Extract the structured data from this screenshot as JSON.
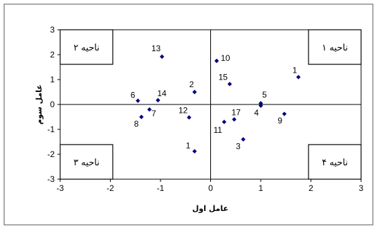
{
  "chart_data": {
    "type": "scatter",
    "xlabel": "عامل اول",
    "ylabel": "عامل سوم",
    "xlim": [
      -3,
      3
    ],
    "ylim": [
      -3,
      3
    ],
    "x_ticks": [
      "-3",
      "-2",
      "-1",
      "0",
      "1",
      "2",
      "3"
    ],
    "y_ticks": [
      "3",
      "2",
      "1",
      "0",
      "-1",
      "-2",
      "-3"
    ],
    "points": [
      {
        "label": "1",
        "x": 1.75,
        "y": 1.1
      },
      {
        "label": "2",
        "x": -0.32,
        "y": 0.5
      },
      {
        "label": "3",
        "x": 0.65,
        "y": -1.4
      },
      {
        "label": "4",
        "x": 1.0,
        "y": -0.05
      },
      {
        "label": "5",
        "x": 1.0,
        "y": 0.05
      },
      {
        "label": "6",
        "x": -1.45,
        "y": 0.15
      },
      {
        "label": "7",
        "x": -1.22,
        "y": -0.2
      },
      {
        "label": "8",
        "x": -1.38,
        "y": -0.5
      },
      {
        "label": "9",
        "x": 1.47,
        "y": -0.38
      },
      {
        "label": "10",
        "x": 0.12,
        "y": 1.75
      },
      {
        "label": "11",
        "x": 0.27,
        "y": -0.7
      },
      {
        "label": "12",
        "x": -0.43,
        "y": -0.52
      },
      {
        "label": "13",
        "x": -0.97,
        "y": 1.92
      },
      {
        "label": "14",
        "x": -1.05,
        "y": 0.17
      },
      {
        "label": "15",
        "x": 0.38,
        "y": 0.82
      },
      {
        "label": "17",
        "x": 0.47,
        "y": -0.6
      },
      {
        "label": "1",
        "x": -0.32,
        "y": -1.88
      }
    ],
    "regions": [
      {
        "label": "ناحیه ۱",
        "quadrant": "top-right"
      },
      {
        "label": "ناحیه ۲",
        "quadrant": "top-left"
      },
      {
        "label": "ناحیه ۳",
        "quadrant": "bottom-left"
      },
      {
        "label": "ناحیه ۴",
        "quadrant": "bottom-right"
      }
    ],
    "marker_color": "#000080",
    "grid": false,
    "legend": "none"
  }
}
